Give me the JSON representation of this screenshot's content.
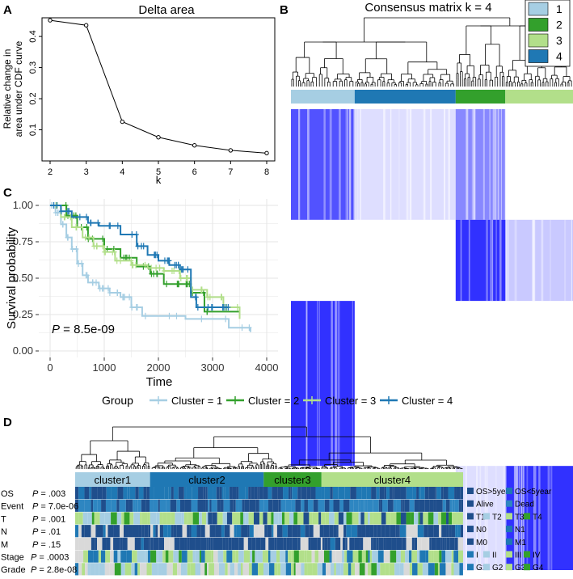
{
  "panels": {
    "A": "A",
    "B": "B",
    "C": "C",
    "D": "D"
  },
  "chart_data": [
    {
      "panel": "A",
      "type": "line",
      "title": "Delta area",
      "xlabel": "k",
      "ylabel": "Relative change in area under CDF curve",
      "ylabel_lines": [
        "Relative change in",
        "area under CDF curve"
      ],
      "x": [
        2,
        3,
        4,
        5,
        6,
        7,
        8
      ],
      "y": [
        0.452,
        0.436,
        0.126,
        0.076,
        0.05,
        0.034,
        0.025
      ],
      "xlim": [
        2,
        8
      ],
      "ylim": [
        0,
        0.46
      ],
      "xticks": [
        "2",
        "3",
        "4",
        "5",
        "6",
        "7",
        "8"
      ],
      "yticks": [
        {
          "v": 0.1,
          "t": "0.1"
        },
        {
          "v": 0.2,
          "t": "0.2"
        },
        {
          "v": 0.3,
          "t": "0.3"
        },
        {
          "v": 0.4,
          "t": "0.4"
        }
      ],
      "grid": false
    },
    {
      "panel": "B",
      "type": "heatmap",
      "title": "Consensus matrix k = 4",
      "legend": [
        {
          "label": "1",
          "color": "#a6cee3"
        },
        {
          "label": "2",
          "color": "#33a02c"
        },
        {
          "label": "3",
          "color": "#b2df8a"
        },
        {
          "label": "4",
          "color": "#1f78b4"
        }
      ],
      "cluster_order": [
        "1",
        "4",
        "2",
        "3"
      ],
      "cluster_fraction": [
        0.226,
        0.358,
        0.176,
        0.24
      ],
      "blocks": [
        {
          "rows": "3",
          "cols": "1",
          "value": 0.8
        },
        {
          "rows": "3",
          "cols": "4",
          "value": 0.15
        },
        {
          "rows": "3",
          "cols": "2",
          "value": 0.55
        },
        {
          "rows": "2",
          "cols": "3",
          "value": 0.25
        },
        {
          "rows": "2",
          "cols": "2",
          "value": 0.95
        },
        {
          "rows": "4",
          "cols": "1",
          "value": 0.95
        },
        {
          "rows": "1",
          "cols": "3",
          "value": 0.95
        },
        {
          "rows": "1",
          "cols": "2",
          "value": 0.15
        }
      ],
      "color_low": "#ffffff",
      "color_high": "#0000ff",
      "legend_position": "top-right"
    },
    {
      "panel": "C",
      "type": "line",
      "xlabel": "Time",
      "ylabel": "Survival probability",
      "xlim": [
        0,
        4000
      ],
      "ylim": [
        0,
        1
      ],
      "xticks": [
        0,
        1000,
        2000,
        3000,
        4000
      ],
      "yticks": [
        "0.00",
        "0.25",
        "0.50",
        "0.75",
        "1.00"
      ],
      "pvalue_label": "P",
      "pvalue_text": " = 8.5e-09",
      "legend_title": "Group",
      "legend_position": "bottom",
      "grid": true,
      "series": [
        {
          "name": "Cluster = 1",
          "color": "#a6cee3",
          "x": [
            0,
            100,
            200,
            300,
            400,
            500,
            600,
            700,
            900,
            1100,
            1300,
            1500,
            1700,
            2500,
            3300,
            3700
          ],
          "y": [
            1.0,
            0.95,
            0.87,
            0.78,
            0.7,
            0.6,
            0.52,
            0.47,
            0.43,
            0.4,
            0.37,
            0.3,
            0.24,
            0.22,
            0.16,
            0.13
          ]
        },
        {
          "name": "Cluster = 2",
          "color": "#33a02c",
          "x": [
            0,
            300,
            500,
            700,
            1000,
            1300,
            1600,
            1850,
            2100,
            2500,
            2600,
            2850,
            3500
          ],
          "y": [
            1.0,
            0.93,
            0.85,
            0.77,
            0.7,
            0.64,
            0.58,
            0.53,
            0.46,
            0.46,
            0.4,
            0.27,
            0.27
          ]
        },
        {
          "name": "Cluster = 3",
          "color": "#b2df8a",
          "x": [
            0,
            200,
            400,
            600,
            800,
            1000,
            1200,
            1500,
            1800,
            2100,
            2400,
            2600,
            2900,
            3200,
            3500
          ],
          "y": [
            1.0,
            0.92,
            0.85,
            0.78,
            0.72,
            0.68,
            0.62,
            0.59,
            0.57,
            0.55,
            0.5,
            0.42,
            0.37,
            0.3,
            0.22
          ]
        },
        {
          "name": "Cluster = 4",
          "color": "#1f78b4",
          "x": [
            0,
            200,
            400,
            700,
            900,
            1300,
            1600,
            1800,
            2000,
            2200,
            2400,
            2600,
            2700,
            3000,
            3300
          ],
          "y": [
            1.0,
            0.96,
            0.92,
            0.88,
            0.86,
            0.8,
            0.72,
            0.66,
            0.62,
            0.59,
            0.56,
            0.37,
            0.3,
            0.3,
            0.3
          ]
        }
      ]
    },
    {
      "panel": "D",
      "type": "heatmap",
      "clusters": [
        {
          "label": "cluster1",
          "color": "#a6cee3",
          "fraction": 0.193
        },
        {
          "label": "cluster2",
          "color": "#1f78b4",
          "fraction": 0.293
        },
        {
          "label": "cluster3",
          "color": "#33a02c",
          "fraction": 0.149
        },
        {
          "label": "cluster4",
          "color": "#b2df8a",
          "fraction": 0.365
        }
      ],
      "tracks": [
        {
          "name": "OS",
          "p_label": "P",
          "p_text": " = .003",
          "palette": [
            "#1f4e8c",
            "#1f78b4"
          ],
          "weights": [
            0.5,
            0.5
          ]
        },
        {
          "name": "Event",
          "p_label": "P",
          "p_text": " = 7.0e-06",
          "palette": [
            "#1f4e8c",
            "#2e86c1"
          ],
          "weights": [
            0.6,
            0.4
          ]
        },
        {
          "name": "T",
          "p_label": "P",
          "p_text": " = .001",
          "palette": [
            "#1f4e8c",
            "#a6cee3",
            "#b2df8a",
            "#33a02c"
          ],
          "weights": [
            0.25,
            0.25,
            0.4,
            0.1
          ]
        },
        {
          "name": "N",
          "p_label": "P",
          "p_text": " = .01",
          "palette": [
            "#1f4e8c",
            "#1f78b4",
            "#d9d9d9"
          ],
          "weights": [
            0.55,
            0.3,
            0.15
          ]
        },
        {
          "name": "M",
          "p_label": "P",
          "p_text": " = .15",
          "palette": [
            "#1f4e8c",
            "#1f78b4",
            "#d9d9d9"
          ],
          "weights": [
            0.7,
            0.05,
            0.25
          ]
        },
        {
          "name": "Stage",
          "p_label": "P",
          "p_text": " = .0003",
          "palette": [
            "#1f78b4",
            "#a6cee3",
            "#b2df8a",
            "#33a02c",
            "#d9d9d9"
          ],
          "weights": [
            0.2,
            0.25,
            0.3,
            0.15,
            0.1
          ]
        },
        {
          "name": "Grade",
          "p_label": "P",
          "p_text": " = 2.8e-08",
          "palette": [
            "#1f78b4",
            "#a6cee3",
            "#b2df8a",
            "#33a02c",
            "#d9d9d9"
          ],
          "weights": [
            0.1,
            0.3,
            0.35,
            0.1,
            0.15
          ]
        }
      ],
      "legend": [
        [
          {
            "label": "OS>5year",
            "color": "#1f4e8c"
          },
          {
            "label": "OS<5year",
            "color": "#1f78b4"
          }
        ],
        [
          {
            "label": "Alive",
            "color": "#1f4e8c"
          },
          {
            "label": "Dead",
            "color": "#2e86c1"
          }
        ],
        [
          {
            "label": "T1",
            "color": "#1f4e8c"
          },
          {
            "label": "T2",
            "color": "#a6cee3"
          },
          {
            "label": "T3",
            "color": "#b2df8a"
          },
          {
            "label": "T4",
            "color": "#33a02c"
          }
        ],
        [
          {
            "label": "N0",
            "color": "#1f4e8c"
          },
          {
            "label": "N1",
            "color": "#1f78b4"
          }
        ],
        [
          {
            "label": "M0",
            "color": "#1f4e8c"
          },
          {
            "label": "M1",
            "color": "#1f78b4"
          }
        ],
        [
          {
            "label": "I",
            "color": "#1f78b4"
          },
          {
            "label": "II",
            "color": "#a6cee3"
          },
          {
            "label": "III",
            "color": "#b2df8a"
          },
          {
            "label": "IV",
            "color": "#33a02c"
          }
        ],
        [
          {
            "label": "G1",
            "color": "#1f78b4"
          },
          {
            "label": "G2",
            "color": "#a6cee3"
          },
          {
            "label": "G3",
            "color": "#b2df8a"
          },
          {
            "label": "G4",
            "color": "#33a02c"
          }
        ]
      ]
    }
  ]
}
